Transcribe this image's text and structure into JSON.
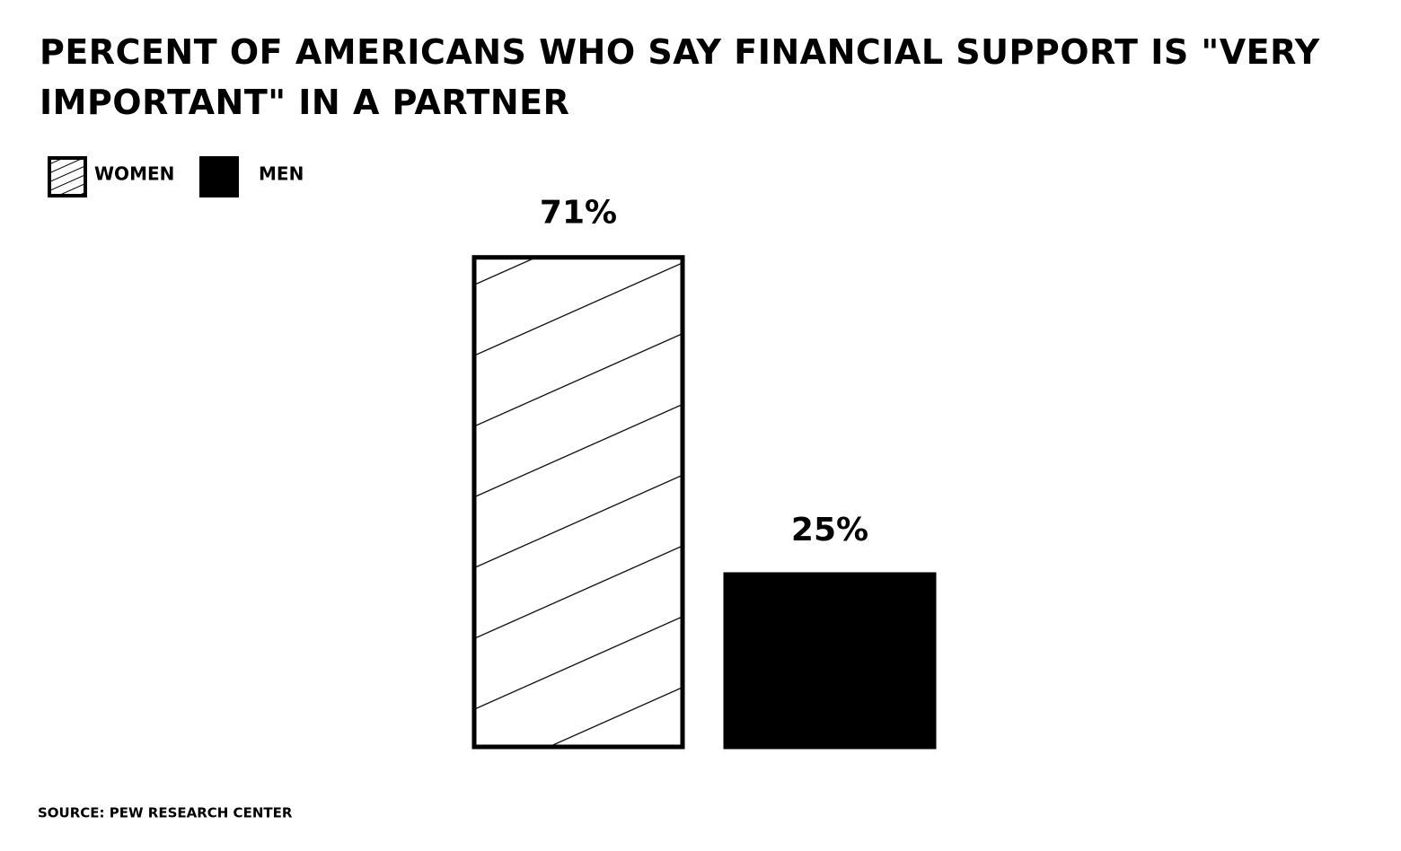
{
  "chart_data": {
    "type": "bar",
    "title": "PERCENT OF AMERICANS WHO SAY FINANCIAL SUPPORT IS \"VERY IMPORTANT\" IN A PARTNER",
    "categories": [
      null
    ],
    "series": [
      {
        "name": "WOMEN",
        "color": "#000000",
        "hatch": true,
        "values": [
          71
        ],
        "value_labels": [
          "71%"
        ]
      },
      {
        "name": "MEN",
        "color": "#000000",
        "hatch": false,
        "values": [
          25
        ],
        "value_labels": [
          "25%"
        ]
      }
    ],
    "source": "SOURCE: PEW RESEARCH CENTER"
  }
}
